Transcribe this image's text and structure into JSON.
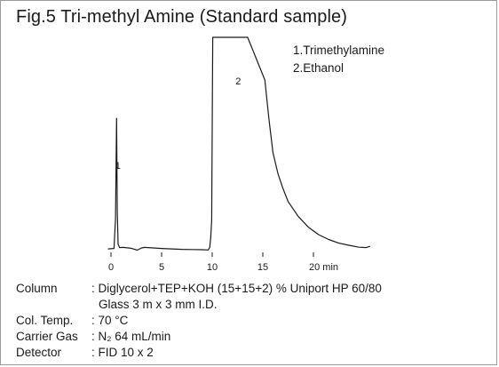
{
  "title": "Fig.5 Tri-methyl Amine (Standard sample)",
  "legend": [
    "1.Trimethylamine",
    "2.Ethanol"
  ],
  "chart_data": {
    "type": "line",
    "title": "Fig.5 Tri-methyl Amine (Standard sample)",
    "xlabel": "",
    "ylabel": "",
    "x_unit": "min",
    "xlim": [
      -0.3,
      26
    ],
    "x_ticks": [
      0,
      5,
      10,
      15,
      20
    ],
    "x_tick_labels": [
      "0",
      "5",
      "10",
      "15",
      "20 min"
    ],
    "grid": false,
    "series": [
      {
        "x": [
          -0.3,
          0.3,
          0.45,
          0.55,
          0.62,
          0.7,
          0.85,
          1.2,
          2.0,
          2.6,
          3.0,
          3.3,
          4.0,
          5.0,
          6.0,
          7.0,
          8.0,
          9.0,
          9.6,
          9.75,
          9.85,
          9.95,
          10.05,
          13.5,
          15.2,
          15.6,
          16.0,
          16.5,
          17.0,
          17.5,
          18.5,
          19.5,
          20.5,
          21.5,
          22.5,
          23.5,
          24.5,
          25.2,
          25.6
        ],
        "y": [
          0.8,
          1.0,
          15,
          62,
          18,
          3,
          1.4,
          1.5,
          1.1,
          0.2,
          1.2,
          1.5,
          1.3,
          1.0,
          0.8,
          0.6,
          0.5,
          0.4,
          0.3,
          1.5,
          6,
          14,
          100,
          100,
          80,
          62,
          46,
          36,
          29,
          23,
          16,
          11,
          7.5,
          5.2,
          3.5,
          2.5,
          1.6,
          1.4,
          2.0
        ]
      }
    ],
    "annotations": [
      {
        "text": "1",
        "x": 0.6
      },
      {
        "text": "2",
        "x": 12.4
      }
    ],
    "peaks": [
      {
        "label": "1",
        "compound": "Trimethylamine",
        "rt": 0.6
      },
      {
        "label": "2",
        "compound": "Ethanol",
        "rt": 12.4
      }
    ]
  },
  "conditions": [
    {
      "label": "Column",
      "value": ": Diglycerol+TEP+KOH  (15+15+2) % Uniport HP 60/80",
      "continuation": "Glass 3 m x 3 mm I.D."
    },
    {
      "label": "Col. Temp.",
      "value": ": 70 °C"
    },
    {
      "label": "Carrier Gas",
      "value": ": N₂ 64 mL/min"
    },
    {
      "label": "Detector",
      "value": ": FID 10 x 2"
    }
  ]
}
